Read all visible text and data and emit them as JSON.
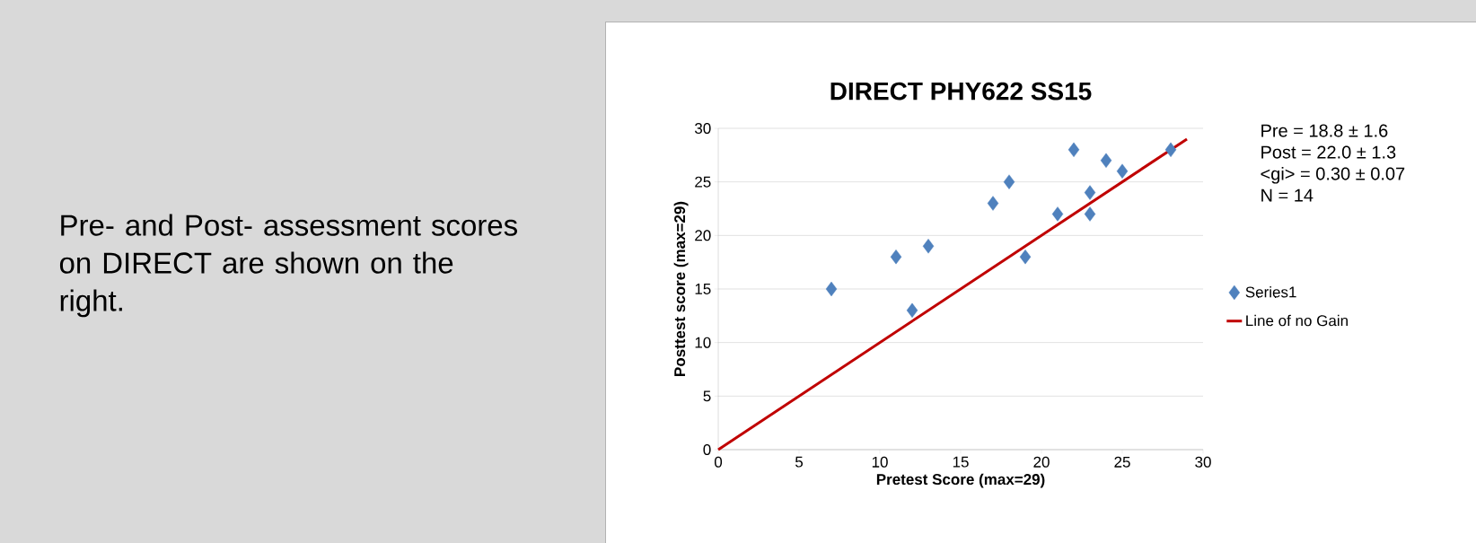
{
  "chart_data": {
    "type": "scatter",
    "title": "DIRECT PHY622 SS15",
    "xlabel": "Pretest Score (max=29)",
    "ylabel": "Posttest score (max=29)",
    "x": [
      7,
      11,
      12,
      13,
      17,
      18,
      19,
      21,
      22,
      23,
      23,
      24,
      25,
      28
    ],
    "series": [
      {
        "name": "Series1",
        "color": "#4f81bd",
        "marker": "diamond",
        "values": [
          15,
          18,
          13,
          19,
          23,
          25,
          18,
          22,
          28,
          24,
          22,
          27,
          26,
          28
        ]
      },
      {
        "name": "Line of no Gain",
        "type": "line",
        "color": "#c00000",
        "marker": "none",
        "x": [
          0,
          29
        ],
        "values": [
          0,
          29
        ]
      }
    ],
    "xlim": [
      0,
      30
    ],
    "ylim": [
      0,
      30
    ],
    "xticks": [
      0,
      5,
      10,
      15,
      20,
      25,
      30
    ],
    "yticks": [
      0,
      5,
      10,
      15,
      20,
      25,
      30
    ],
    "grid": "y",
    "legend": "right",
    "line_style": "solid",
    "annotations": [
      "Pre- and Post- assessment scores on DIRECT are shown on the right.",
      "Pre = 18.8 ± 1.6",
      "Post = 22.0 ± 1.3",
      "<gi> = 0.30 ± 0.07",
      "N = 14"
    ]
  }
}
